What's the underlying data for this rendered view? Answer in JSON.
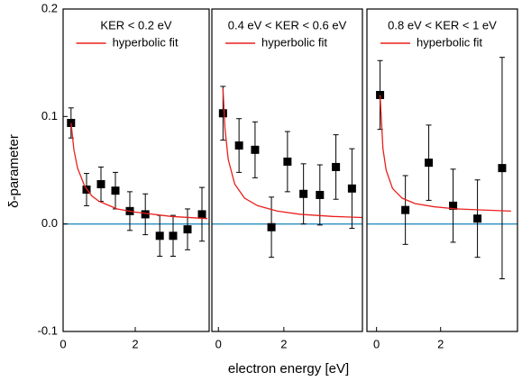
{
  "ylabel": "δ-parameter",
  "xlabel": "electron energy [eV]",
  "chart_data": [
    {
      "type": "scatter",
      "title": "KER < 0.2 eV",
      "xlim": [
        0,
        4.05
      ],
      "xticks": [
        0,
        2
      ],
      "ylim": [
        -0.1,
        0.2
      ],
      "yticks": [
        -0.1,
        {
          "value": 0,
          "label": "0.0"
        },
        0.1,
        0.2
      ],
      "hline": 0,
      "hline_color": "#2a8fc0",
      "points": {
        "color": "#000000",
        "x": [
          0.22,
          0.65,
          1.05,
          1.45,
          1.85,
          2.28,
          2.68,
          3.05,
          3.45,
          3.85
        ],
        "values": [
          0.094,
          0.032,
          0.037,
          0.031,
          0.012,
          0.009,
          -0.011,
          -0.011,
          -0.005,
          0.009
        ],
        "errors": [
          0.014,
          0.015,
          0.016,
          0.017,
          0.018,
          0.019,
          0.019,
          0.019,
          0.019,
          0.025
        ]
      },
      "series": [
        {
          "name": "hyperbolic fit",
          "color": "#e8201c",
          "x": [
            0.22,
            0.3,
            0.4,
            0.6,
            0.8,
            1.0,
            1.5,
            2,
            3,
            4
          ],
          "values": [
            0.094,
            0.069,
            0.052,
            0.035,
            0.026,
            0.021,
            0.014,
            0.011,
            0.007,
            0.005
          ]
        }
      ]
    },
    {
      "type": "scatter",
      "title": "0.4 eV < KER < 0.6 eV",
      "xlim": [
        -0.2,
        4.4
      ],
      "xticks": [
        0,
        2
      ],
      "ylim": [
        -0.1,
        0.2
      ],
      "hline": 0,
      "hline_color": "#2a8fc0",
      "points": {
        "color": "#000000",
        "x": [
          0.14,
          0.63,
          1.12,
          1.62,
          2.11,
          2.6,
          3.1,
          3.59,
          4.08
        ],
        "values": [
          0.103,
          0.073,
          0.069,
          -0.003,
          0.058,
          0.028,
          0.027,
          0.053,
          0.033
        ],
        "errors": [
          0.025,
          0.025,
          0.026,
          0.028,
          0.028,
          0.028,
          0.028,
          0.03,
          0.037
        ]
      },
      "series": [
        {
          "name": "hyperbolic fit",
          "color": "#e8201c",
          "x": [
            0.14,
            0.2,
            0.3,
            0.5,
            0.8,
            1.2,
            1.8,
            2.5,
            3.5,
            4.4
          ],
          "values": [
            0.126,
            0.089,
            0.06,
            0.037,
            0.024,
            0.017,
            0.012,
            0.009,
            0.007,
            0.006
          ]
        }
      ]
    },
    {
      "type": "scatter",
      "title": "0.8 eV < KER < 1 eV",
      "xlim": [
        -0.3,
        4.4
      ],
      "xticks": [
        0,
        2
      ],
      "ylim": [
        -0.1,
        0.2
      ],
      "hline": 0,
      "hline_color": "#2a8fc0",
      "points": {
        "color": "#000000",
        "x": [
          0.11,
          0.9,
          1.63,
          2.39,
          3.15,
          3.92
        ],
        "values": [
          0.12,
          0.013,
          0.057,
          0.017,
          0.005,
          0.052
        ],
        "errors": [
          0.032,
          0.032,
          0.035,
          0.034,
          0.036,
          0.103
        ]
      },
      "series": [
        {
          "name": "hyperbolic fit",
          "color": "#e8201c",
          "x": [
            0.11,
            0.2,
            0.3,
            0.5,
            0.8,
            1.2,
            1.8,
            2.5,
            3.3,
            4.2
          ],
          "values": [
            0.12,
            0.07,
            0.05,
            0.033,
            0.024,
            0.019,
            0.016,
            0.014,
            0.013,
            0.012
          ]
        }
      ]
    }
  ]
}
